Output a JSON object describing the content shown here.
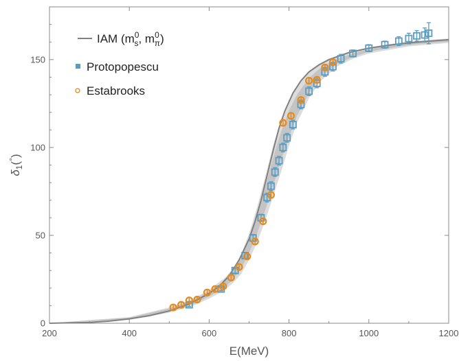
{
  "chart_data": {
    "type": "scatter",
    "xlabel": "E(MeV)",
    "ylabel": "δ1(°)",
    "xlim": [
      200,
      1200
    ],
    "ylim": [
      0,
      180
    ],
    "xticks": [
      200,
      400,
      600,
      800,
      1000,
      1200
    ],
    "yticks": [
      0,
      50,
      100,
      150
    ],
    "legend_position": "top-left",
    "grid": false,
    "colors": {
      "iam": "#808080",
      "protopopescu": "#5b9bc0",
      "estabrooks": "#e88a1a",
      "band_outer": "#dcdcdc",
      "band_inner": "#c4c4c4"
    },
    "legend": [
      {
        "key": "iam",
        "label": "IAM (m_s^0, m_π^0)",
        "marker": "line"
      },
      {
        "key": "protopopescu",
        "label": "Protopopescu",
        "marker": "square"
      },
      {
        "key": "estabrooks",
        "label": "Estabrooks",
        "marker": "circle"
      }
    ],
    "series": [
      {
        "name": "IAM (m_s^0, m_π^0)",
        "kind": "line",
        "x": [
          200,
          300,
          350,
          400,
          450,
          500,
          550,
          600,
          625,
          650,
          675,
          700,
          715,
          730,
          745,
          760,
          775,
          790,
          810,
          830,
          850,
          875,
          900,
          950,
          1000,
          1050,
          1100,
          1150,
          1200
        ],
        "y": [
          0,
          0.5,
          1.2,
          2.5,
          4.3,
          7,
          11,
          17,
          21,
          27,
          36,
          48,
          58,
          70,
          84,
          98,
          111,
          121,
          131,
          138,
          143,
          147,
          150,
          154,
          156.5,
          158.2,
          159.5,
          160.5,
          161.3
        ]
      },
      {
        "name": "Protopopescu",
        "kind": "scatter",
        "x": [
          550,
          630,
          665,
          690,
          710,
          730,
          745,
          755,
          765,
          775,
          785,
          795,
          810,
          830,
          850,
          870,
          890,
          910,
          930,
          960,
          1000,
          1040,
          1075,
          1100,
          1120,
          1140,
          1150
        ],
        "y": [
          10.5,
          19.5,
          30,
          38.5,
          48.5,
          60,
          71.5,
          78,
          86,
          92.5,
          100,
          105.5,
          113,
          124.5,
          132,
          136.5,
          143,
          146,
          150.5,
          153.5,
          156.5,
          158.5,
          160.5,
          162,
          163.5,
          164,
          165
        ],
        "err": [
          1,
          1,
          1.5,
          1.5,
          2,
          2,
          2.5,
          2.5,
          2.5,
          2.5,
          2.5,
          2.5,
          2.5,
          2.5,
          2.5,
          2.5,
          2.5,
          2.5,
          2.5,
          2,
          2,
          2,
          2.5,
          3,
          3,
          4,
          6
        ]
      },
      {
        "name": "Estabrooks",
        "kind": "scatter",
        "x": [
          510,
          530,
          550,
          570,
          595,
          615,
          635,
          655,
          675,
          695,
          715,
          735,
          755,
          785,
          805,
          830,
          850,
          870,
          890,
          910
        ],
        "y": [
          9,
          10.5,
          13,
          13.5,
          17.5,
          19.5,
          21,
          26,
          32,
          38,
          46.5,
          58,
          73,
          114,
          118,
          127,
          138,
          138.5,
          145.5,
          148.5
        ],
        "err": [
          1.5,
          1.5,
          1.5,
          1.5,
          1.5,
          1.5,
          1.5,
          1.5,
          1.5,
          1.5,
          2,
          2,
          2,
          2,
          2,
          2,
          2,
          2,
          2,
          2
        ]
      }
    ],
    "band_outer": {
      "x": [
        200,
        400,
        500,
        560,
        600,
        640,
        660,
        680,
        700,
        720,
        740,
        760,
        780,
        800,
        820,
        850,
        880,
        920,
        960,
        1000,
        1100,
        1200
      ],
      "y_low": [
        0,
        2,
        6,
        10,
        14,
        19,
        23,
        28,
        36,
        46,
        58,
        72,
        86,
        101,
        114,
        128,
        138,
        146,
        150.5,
        153.5,
        157.5,
        159.5
      ],
      "y_high": [
        0,
        3.5,
        9,
        14,
        19,
        26,
        31,
        39,
        51,
        66,
        83,
        101,
        116,
        127,
        135,
        143,
        148,
        152,
        155,
        157,
        160.5,
        162
      ]
    },
    "band_inner": {
      "x": [
        200,
        400,
        500,
        560,
        600,
        640,
        660,
        680,
        700,
        720,
        740,
        760,
        780,
        800,
        820,
        850,
        880,
        920,
        960,
        1000,
        1100,
        1200
      ],
      "y_low": [
        0,
        2.3,
        6.7,
        10.8,
        15.3,
        20.5,
        25,
        31,
        40,
        51,
        64,
        78,
        93,
        106,
        118,
        131,
        140.5,
        147.5,
        151.5,
        154.5,
        158.3,
        160.2
      ],
      "y_high": [
        0,
        3.2,
        8.4,
        13.2,
        18.2,
        24.5,
        29.5,
        37,
        48,
        61,
        77,
        94,
        109,
        121,
        130,
        139.5,
        145.5,
        150.5,
        153.5,
        156,
        159.8,
        161.5
      ]
    }
  }
}
